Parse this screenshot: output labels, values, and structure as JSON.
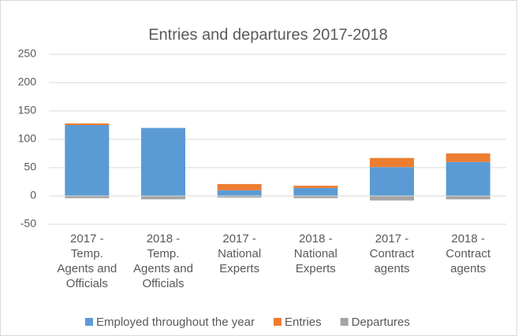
{
  "chart_data": {
    "type": "stacked_bar",
    "title": "Entries and departures 2017-2018",
    "categories": [
      "2017 - Temp. Agents and Officials",
      "2018 - Temp. Agents and Officials",
      "2017 - National Experts",
      "2018 - National Experts",
      "2017 - Contract agents",
      "2018 - Contract agents"
    ],
    "series": [
      {
        "name": "Employed throughout the year",
        "color": "#5b9bd5",
        "values": [
          125,
          120,
          10,
          14,
          51,
          60
        ]
      },
      {
        "name": "Entries",
        "color": "#ed7d31",
        "values": [
          3,
          0,
          11,
          4,
          16,
          15
        ]
      },
      {
        "name": "Departures",
        "color": "#a5a5a5",
        "values": [
          -4,
          -6,
          -3,
          -4,
          -8,
          -6
        ]
      }
    ],
    "ylim": [
      -50,
      250
    ],
    "yticks": [
      -50,
      0,
      50,
      100,
      150,
      200,
      250
    ],
    "grid": true,
    "legend": "bottom"
  }
}
